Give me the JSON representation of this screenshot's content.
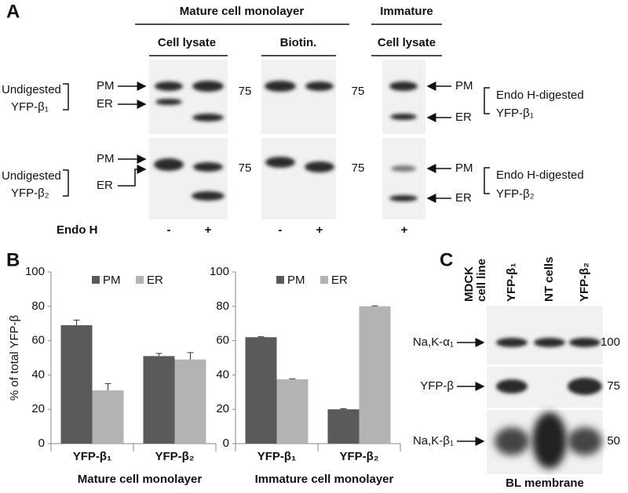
{
  "panel_a": {
    "label": "A",
    "header_mature": "Mature cell monolayer",
    "header_immature": "Immature",
    "subheaders": [
      "Cell lysate",
      "Biotin.",
      "Cell lysate"
    ],
    "rows": [
      {
        "left_label": [
          "Undigested",
          "YFP-β₁"
        ],
        "arrows": [
          "PM",
          "ER"
        ],
        "markers": [
          "75",
          "75"
        ],
        "right_arrows": [
          "PM",
          "ER"
        ],
        "right_label": [
          "Endo H-digested",
          "YFP-β₁"
        ]
      },
      {
        "left_label": [
          "Undigested",
          "YFP-β₂"
        ],
        "arrows": [
          "PM",
          "ER"
        ],
        "markers": [
          "75",
          "75"
        ],
        "right_arrows": [
          "PM",
          "ER"
        ],
        "right_label": [
          "Endo H-digested",
          "YFP-β₂"
        ]
      }
    ],
    "treatment": {
      "label": "Endo H",
      "lanes": [
        "-",
        "+",
        "-",
        "+",
        "+"
      ]
    }
  },
  "panel_b_label": "B",
  "chart_data": [
    {
      "type": "bar",
      "ylabel": "% of total YFP-β",
      "xlabel": "Mature cell monolayer",
      "categories": [
        "YFP-β₁",
        "YFP-β₂"
      ],
      "series": [
        {
          "name": "PM",
          "color": "#5a5a5a",
          "values": [
            69,
            51
          ],
          "errors": [
            3,
            1.5
          ]
        },
        {
          "name": "ER",
          "color": "#b3b3b3",
          "values": [
            31,
            49
          ],
          "errors": [
            4,
            4
          ]
        }
      ],
      "ylim": [
        0,
        100
      ],
      "yticks": [
        0,
        20,
        40,
        60,
        80,
        100
      ],
      "legend": "top",
      "grid": false
    },
    {
      "type": "bar",
      "xlabel": "Immature cell monolayer",
      "categories": [
        "YFP-β₁",
        "YFP-β₂"
      ],
      "series": [
        {
          "name": "PM",
          "color": "#5a5a5a",
          "values": [
            62,
            20
          ],
          "errors": [
            0.3,
            0.3
          ]
        },
        {
          "name": "ER",
          "color": "#b3b3b3",
          "values": [
            37.5,
            80
          ],
          "errors": [
            0.3,
            0.3
          ]
        }
      ],
      "ylim": [
        0,
        100
      ],
      "yticks": [
        0,
        20,
        40,
        60,
        80,
        100
      ],
      "legend": "top",
      "grid": false
    }
  ],
  "panel_c": {
    "label": "C",
    "column_title": [
      "MDCK",
      "cell line"
    ],
    "lanes": [
      "YFP-β₁",
      "NT cells",
      "YFP-β₂"
    ],
    "rows": [
      {
        "label": "Na,K-α₁",
        "marker": "100"
      },
      {
        "label": "YFP-β",
        "marker": "75"
      },
      {
        "label": "Na,K-β₁",
        "marker": "50"
      }
    ],
    "footer": "BL membrane"
  }
}
